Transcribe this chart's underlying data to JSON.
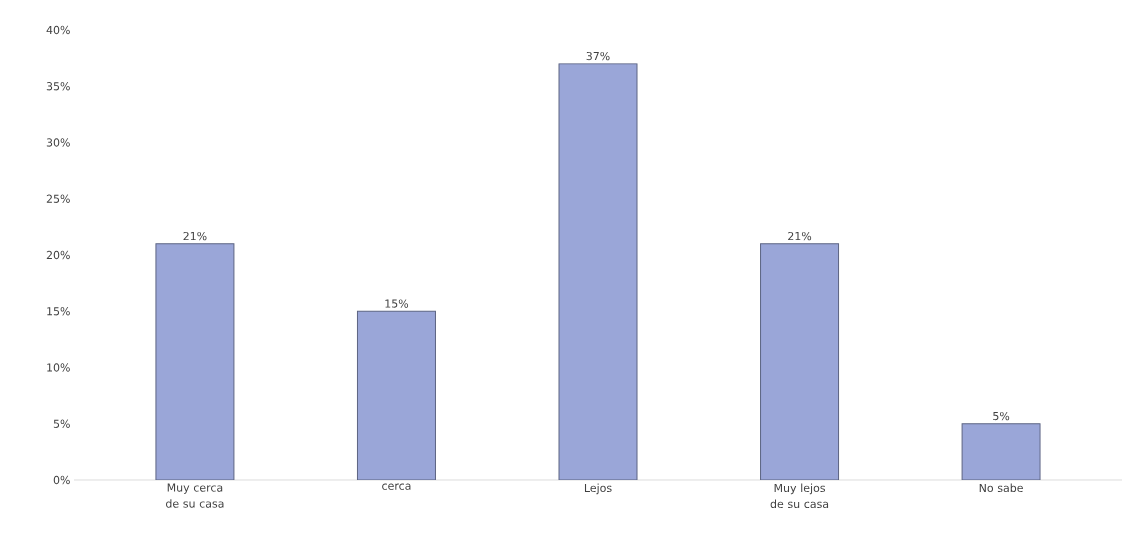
{
  "chart_data": {
    "type": "bar",
    "categories": [
      "Muy cerca de su casa",
      "cerca",
      "Lejos",
      "Muy lejos de su casa",
      "No sabe"
    ],
    "values": [
      21,
      15,
      37,
      21,
      5
    ],
    "value_labels": [
      "21%",
      "15%",
      "37%",
      "21%",
      "5%"
    ],
    "color": "#9aa6d8",
    "ylim": [
      0,
      40
    ],
    "yticks": [
      {
        "value": 0,
        "label": "0%"
      },
      {
        "value": 5,
        "label": "5%"
      },
      {
        "value": 10,
        "label": "10%"
      },
      {
        "value": 15,
        "label": "15%"
      },
      {
        "value": 20,
        "label": "20%"
      },
      {
        "value": 25,
        "label": "25%"
      },
      {
        "value": 30,
        "label": "30%"
      },
      {
        "value": 35,
        "label": "35%"
      },
      {
        "value": 40,
        "label": "40%"
      }
    ]
  }
}
